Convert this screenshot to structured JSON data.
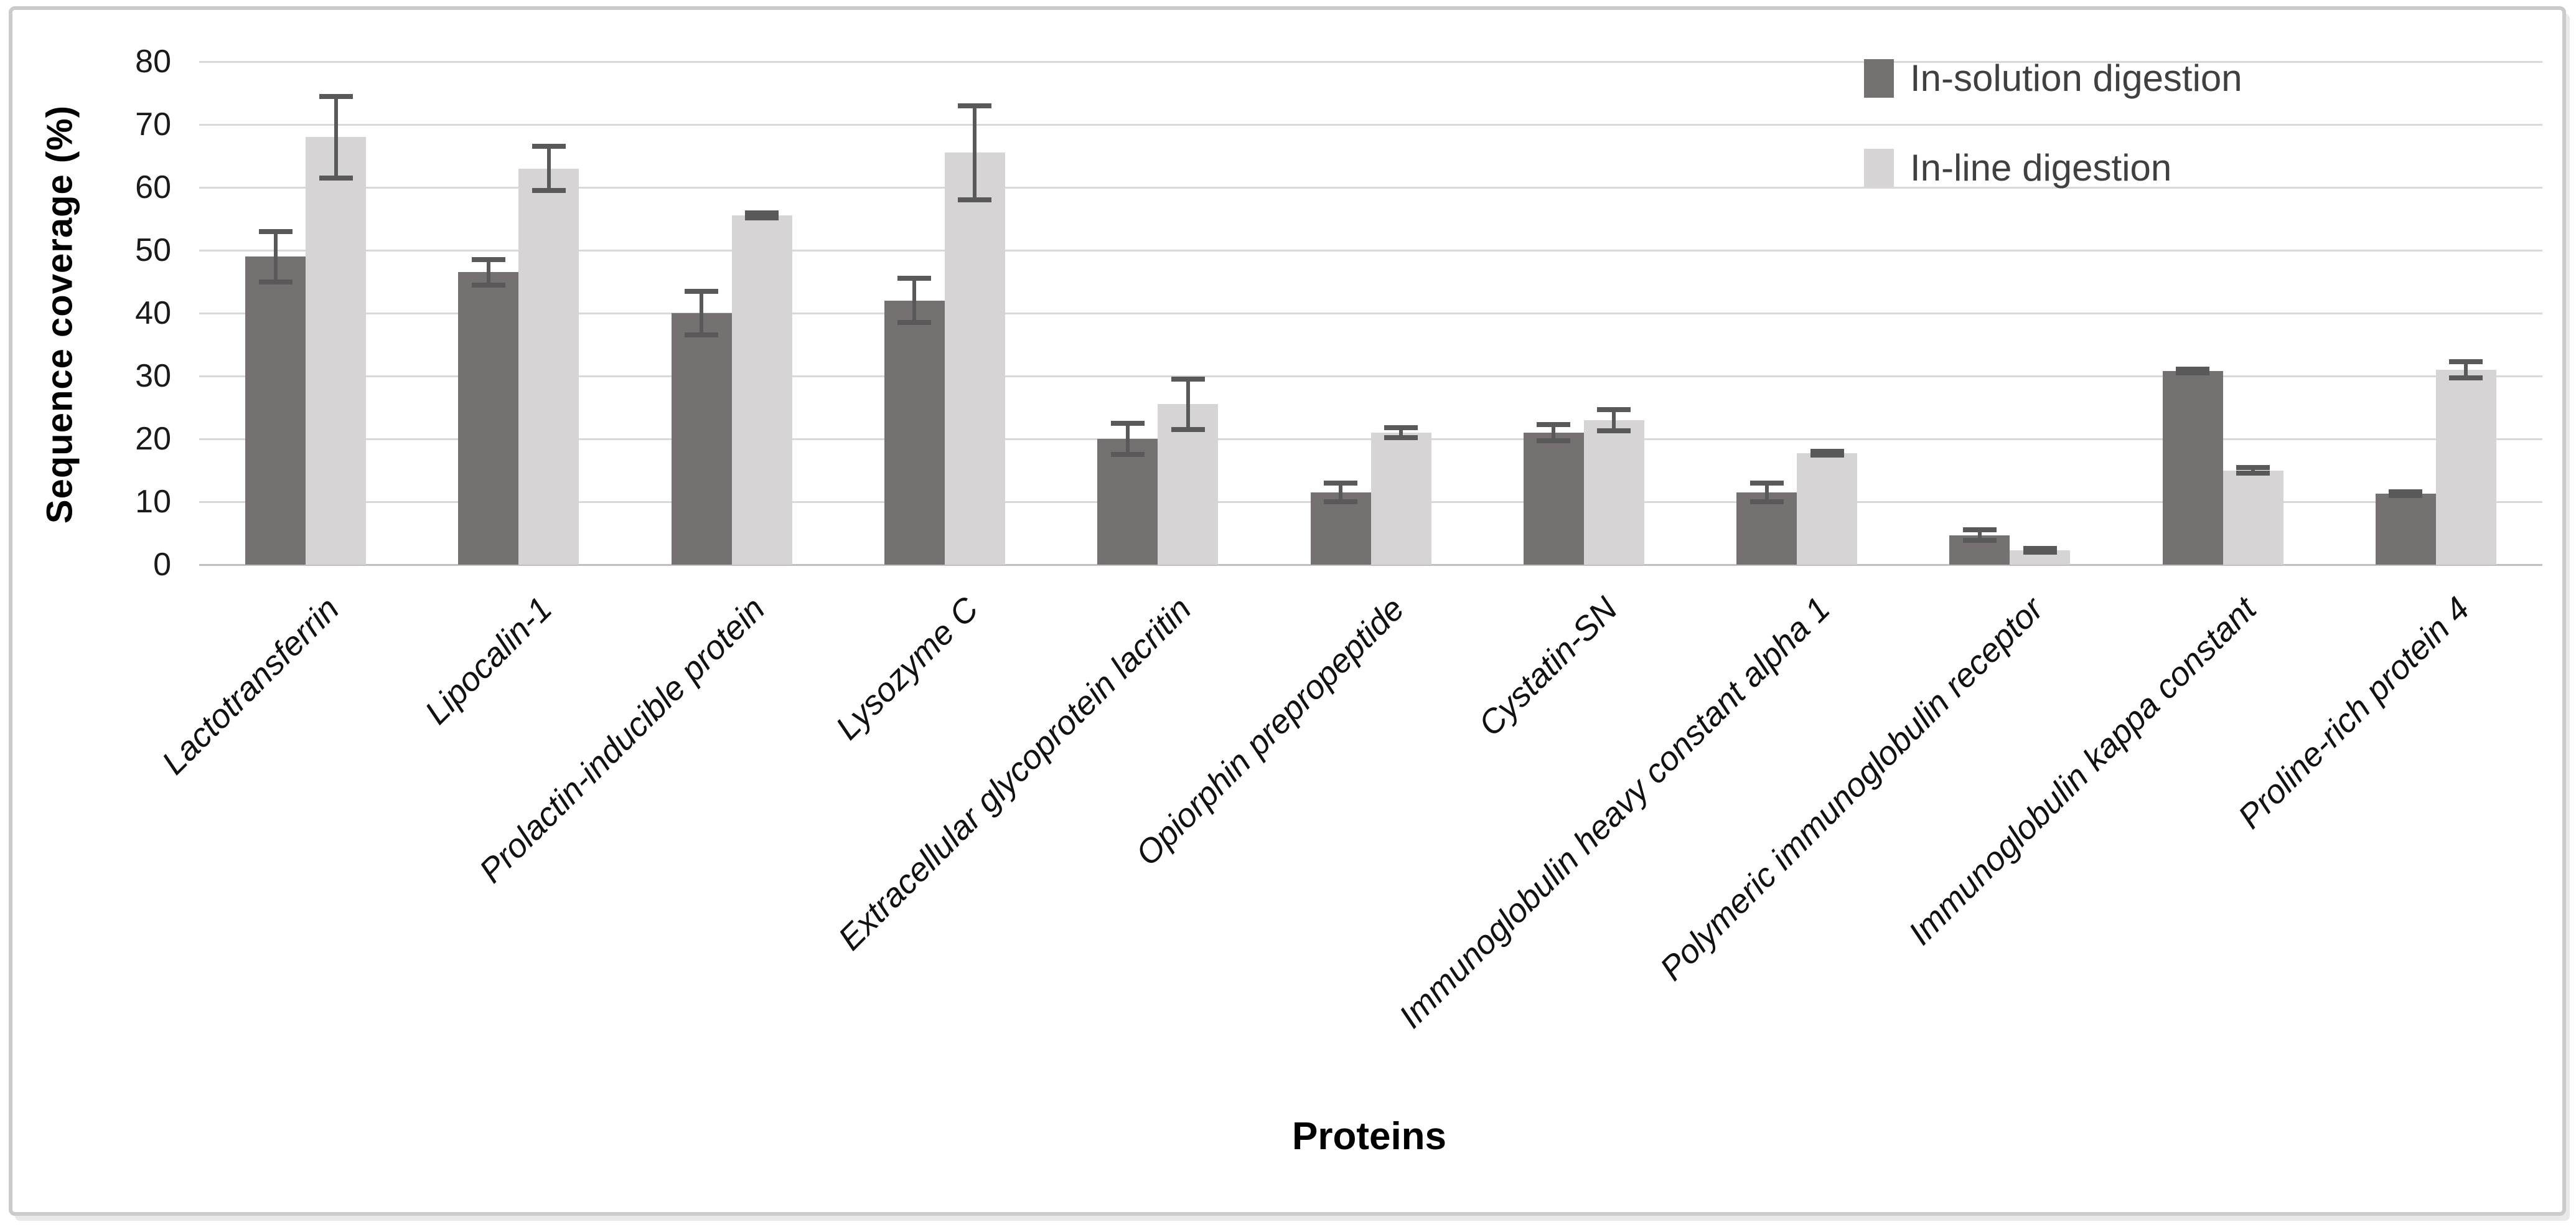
{
  "figure": {
    "y_axis_title": "Sequence coverage  (%)",
    "x_axis_title": "Proteins"
  },
  "chart_data": {
    "type": "bar",
    "title": "",
    "xlabel": "Proteins",
    "ylabel": "Sequence coverage  (%)",
    "ylim": [
      0,
      80
    ],
    "ytick_step": 10,
    "grid": true,
    "legend_position": "top-right",
    "gridline_color": "#d9d9d9",
    "axis_line_color": "#bfbfbf",
    "error_bar_color": "#595959",
    "categories": [
      "Lactotransferrin",
      "Lipocalin-1",
      "Prolactin-inducible protein",
      "Lysozyme C",
      "Extracellular glycoprotein lacritin",
      "Opiorphin prepropeptide",
      "Cystatin-SN",
      "Immunoglobulin heavy constant alpha 1",
      "Polymeric immunoglobulin receptor",
      "Immunoglobulin kappa constant",
      "Proline-rich protein 4"
    ],
    "series": [
      {
        "name": "In-solution digestion",
        "color": "#767171",
        "values": [
          49,
          46.5,
          40,
          42,
          20,
          11.5,
          21,
          11.5,
          4.7,
          30.8,
          11.3
        ],
        "errors": [
          4,
          2,
          3.5,
          3.5,
          2.5,
          1.5,
          1.3,
          1.5,
          0.8,
          0.3,
          0.3
        ]
      },
      {
        "name": "In-line digestion",
        "color": "#d7d4d5",
        "values": [
          68,
          63,
          55.5,
          65.5,
          25.5,
          21,
          23,
          17.7,
          2.3,
          15,
          31
        ],
        "errors": [
          6.5,
          3.5,
          0.4,
          7.5,
          4,
          0.8,
          1.7,
          0.3,
          0.3,
          0.4,
          1.3
        ]
      }
    ]
  }
}
